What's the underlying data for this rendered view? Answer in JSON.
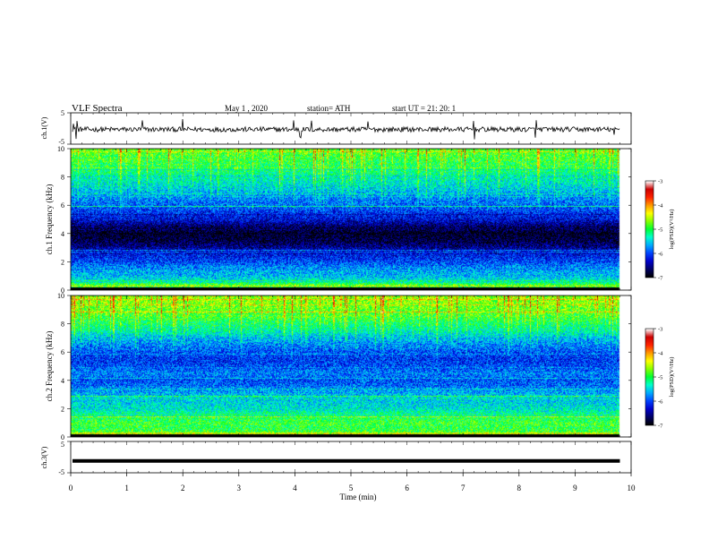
{
  "header": {
    "title": "VLF Spectra",
    "date": "May 1 , 2020",
    "station": "station= ATH",
    "start": "start UT = 21: 20: 1"
  },
  "colors": {
    "scale": [
      "#000000",
      "#000066",
      "#0000cc",
      "#0044ff",
      "#00aaff",
      "#00ffcc",
      "#00ff33",
      "#88ff00",
      "#ffff00",
      "#ff9900",
      "#ff2200",
      "#cc0000",
      "#ffffff"
    ]
  },
  "chart_data": [
    {
      "type": "line",
      "name": "ch1-waveform",
      "ylabel": "ch.1(V)",
      "ylim": [
        -5,
        5
      ],
      "yticks": [
        "5",
        "-5"
      ],
      "xlim": [
        0,
        10
      ],
      "baseline": -0.3,
      "spike_times": [
        0.05,
        0.1,
        1.28,
        2.0,
        3.98,
        4.1,
        4.3,
        5.3,
        7.2,
        8.3,
        9.7
      ]
    },
    {
      "type": "heatmap",
      "name": "ch1-spectrogram",
      "ylabel": "ch.1 Frequency (kHz)",
      "ylim": [
        0,
        10
      ],
      "yticks": [
        "0",
        "2",
        "4",
        "6",
        "8",
        "10"
      ],
      "xlim": [
        0,
        10
      ],
      "colorbar_label": "log(PSD)(V²/Hz)",
      "colorbar_ticks": [
        "-3",
        "-4",
        "-5",
        "-6",
        "-7"
      ],
      "color_range": [
        -7,
        -3
      ],
      "profile": {
        "freq_khz": [
          0,
          0.3,
          0.6,
          1.0,
          1.5,
          2.0,
          2.5,
          3.0,
          3.5,
          4.0,
          4.5,
          5.0,
          5.5,
          6.0,
          6.5,
          7.0,
          7.5,
          8.0,
          8.5,
          9.0,
          9.5,
          10.0
        ],
        "log_psd": [
          -7.0,
          -4.6,
          -5.3,
          -5.6,
          -5.7,
          -6.0,
          -6.2,
          -6.5,
          -6.8,
          -6.9,
          -6.7,
          -6.3,
          -6.1,
          -5.9,
          -5.8,
          -5.6,
          -5.4,
          -5.3,
          -5.1,
          -5.0,
          -4.9,
          -4.8
        ]
      }
    },
    {
      "type": "heatmap",
      "name": "ch2-spectrogram",
      "ylabel": "ch.2 Frequency (kHz)",
      "ylim": [
        0,
        10
      ],
      "yticks": [
        "0",
        "2",
        "4",
        "6",
        "8",
        "10"
      ],
      "xlim": [
        0,
        10
      ],
      "colorbar_label": "log(PSD)(V²/Hz)",
      "colorbar_ticks": [
        "-3",
        "-4",
        "-5",
        "-6",
        "-7"
      ],
      "color_range": [
        -7,
        -3
      ],
      "profile": {
        "freq_khz": [
          0,
          0.3,
          0.6,
          1.0,
          1.5,
          2.0,
          2.5,
          3.0,
          3.5,
          4.0,
          4.5,
          5.0,
          5.5,
          6.0,
          6.5,
          7.0,
          7.5,
          8.0,
          8.5,
          9.0,
          9.5,
          10.0
        ],
        "log_psd": [
          -7.0,
          -4.8,
          -5.0,
          -4.9,
          -5.1,
          -5.4,
          -5.5,
          -5.6,
          -5.8,
          -6.0,
          -5.8,
          -6.0,
          -6.1,
          -6.0,
          -5.8,
          -5.6,
          -5.3,
          -5.1,
          -4.9,
          -4.8,
          -4.7,
          -4.6
        ]
      }
    },
    {
      "type": "line",
      "name": "ch3-waveform",
      "ylabel": "ch.3(V)",
      "ylim": [
        -5,
        5
      ],
      "yticks": [
        "5",
        "-5"
      ],
      "xlim": [
        0,
        10
      ],
      "baseline": -1.2,
      "xlabel": "Time (min)",
      "xticks": [
        "0",
        "1",
        "2",
        "3",
        "4",
        "5",
        "6",
        "7",
        "8",
        "9",
        "10"
      ]
    }
  ]
}
